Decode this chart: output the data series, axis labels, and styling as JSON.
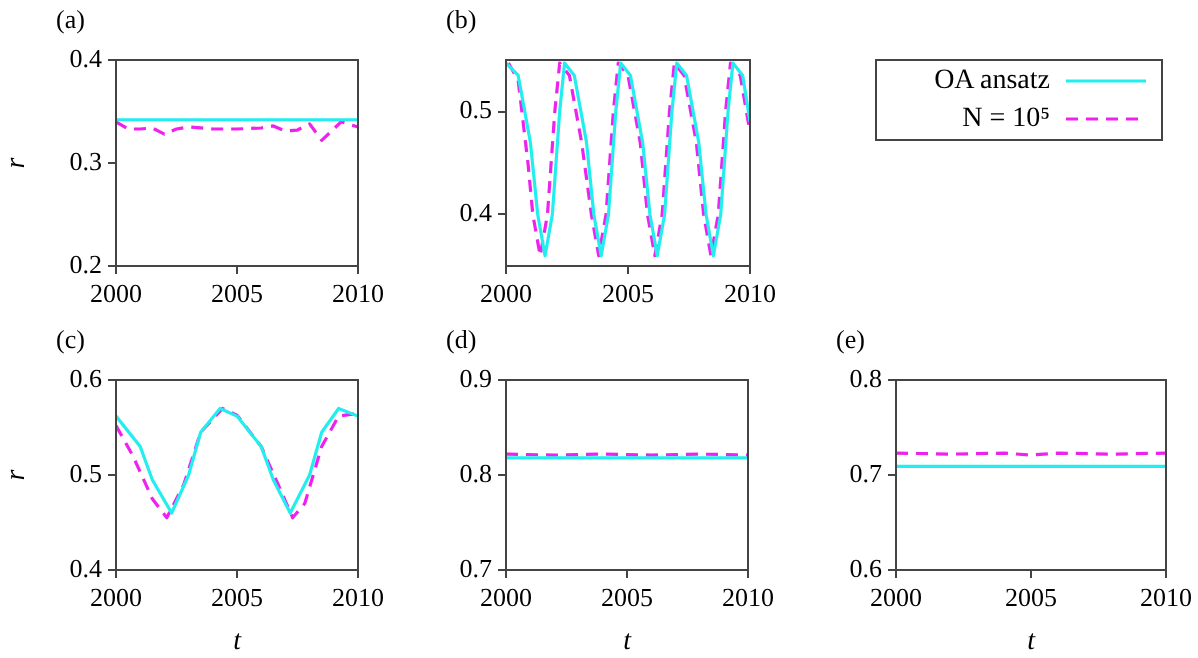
{
  "chart_data": [
    {
      "type": "line",
      "title": "(a)",
      "ylabel": "r",
      "xlim": [
        2000,
        2010
      ],
      "xticks": [
        2000,
        2005,
        2010
      ],
      "ylim": [
        0.2,
        0.4
      ],
      "yticks": [
        0.2,
        0.3,
        0.4
      ],
      "series": [
        {
          "color": "#22eeee",
          "line_style": "solid",
          "x": [
            2000,
            2010
          ],
          "values": [
            0.342,
            0.342
          ]
        },
        {
          "color": "#ee22ee",
          "line_style": "dashed",
          "x": [
            2000,
            2000.5,
            2001,
            2001.5,
            2002,
            2002.5,
            2003,
            2004,
            2005,
            2006,
            2006.5,
            2007,
            2007.5,
            2008,
            2008.5,
            2009,
            2009.3,
            2010
          ],
          "values": [
            0.34,
            0.333,
            0.333,
            0.334,
            0.328,
            0.333,
            0.335,
            0.333,
            0.333,
            0.334,
            0.336,
            0.331,
            0.332,
            0.338,
            0.322,
            0.333,
            0.34,
            0.335
          ]
        }
      ]
    },
    {
      "type": "line",
      "title": "(b)",
      "legend": "right",
      "xlim": [
        2000,
        2010
      ],
      "xticks": [
        2000,
        2005,
        2010
      ],
      "ylim": [
        0.35,
        0.55
      ],
      "yticks": [
        0.4,
        0.5
      ],
      "series": [
        {
          "name": "OA ansatz",
          "color": "#22eeee",
          "line_style": "solid",
          "x": [
            2000,
            2000.5,
            2001,
            2001.3,
            2001.6,
            2001.9,
            2002.2,
            2002.4,
            2002.8,
            2003.3,
            2003.6,
            2003.9,
            2004.2,
            2004.5,
            2004.7,
            2005.1,
            2005.6,
            2005.9,
            2006.2,
            2006.5,
            2006.8,
            2007,
            2007.4,
            2007.9,
            2008.2,
            2008.5,
            2008.8,
            2009.1,
            2009.3,
            2009.7,
            2010
          ],
          "values": [
            0.547,
            0.535,
            0.47,
            0.4,
            0.36,
            0.4,
            0.5,
            0.547,
            0.535,
            0.47,
            0.4,
            0.36,
            0.4,
            0.5,
            0.547,
            0.535,
            0.47,
            0.4,
            0.36,
            0.4,
            0.5,
            0.547,
            0.535,
            0.47,
            0.4,
            0.36,
            0.4,
            0.5,
            0.547,
            0.535,
            0.49
          ]
        },
        {
          "name": "N = 10⁵",
          "color": "#ee22ee",
          "line_style": "dashed",
          "x": [
            2000.1,
            2000.5,
            2000.9,
            2001.1,
            2001.4,
            2001.7,
            2002,
            2002.2,
            2002.6,
            2003.1,
            2003.5,
            2003.8,
            2004.1,
            2004.4,
            2004.6,
            2005,
            2005.5,
            2005.8,
            2006.1,
            2006.4,
            2006.7,
            2006.9,
            2007.3,
            2007.8,
            2008.1,
            2008.4,
            2008.7,
            2009,
            2009.2,
            2009.6,
            2010
          ],
          "values": [
            0.547,
            0.53,
            0.45,
            0.4,
            0.36,
            0.4,
            0.5,
            0.547,
            0.535,
            0.47,
            0.4,
            0.36,
            0.4,
            0.5,
            0.547,
            0.535,
            0.47,
            0.4,
            0.36,
            0.4,
            0.5,
            0.547,
            0.535,
            0.47,
            0.4,
            0.36,
            0.4,
            0.5,
            0.547,
            0.535,
            0.48
          ]
        }
      ]
    },
    {
      "type": "line",
      "title": "(c)",
      "ylabel": "r",
      "xlabel": "t",
      "xlim": [
        2000,
        2010
      ],
      "xticks": [
        2000,
        2005,
        2010
      ],
      "ylim": [
        0.4,
        0.6
      ],
      "yticks": [
        0.4,
        0.5,
        0.6
      ],
      "series": [
        {
          "color": "#22eeee",
          "line_style": "solid",
          "x": [
            2000,
            2001,
            2001.5,
            2002.3,
            2003,
            2003.5,
            2004.3,
            2005,
            2006,
            2006.5,
            2007.2,
            2008,
            2008.5,
            2009.2,
            2010
          ],
          "values": [
            0.562,
            0.53,
            0.495,
            0.46,
            0.5,
            0.545,
            0.57,
            0.562,
            0.53,
            0.495,
            0.46,
            0.5,
            0.545,
            0.57,
            0.562
          ]
        },
        {
          "color": "#ee22ee",
          "line_style": "dashed",
          "x": [
            2000,
            2000.7,
            2001.5,
            2002.1,
            2002.8,
            2003.5,
            2004.4,
            2005,
            2006,
            2006.7,
            2007.3,
            2007.8,
            2008.5,
            2009.2,
            2010
          ],
          "values": [
            0.552,
            0.52,
            0.475,
            0.455,
            0.49,
            0.545,
            0.57,
            0.563,
            0.53,
            0.49,
            0.455,
            0.47,
            0.53,
            0.562,
            0.565
          ]
        }
      ]
    },
    {
      "type": "line",
      "title": "(d)",
      "xlabel": "t",
      "xlim": [
        2000,
        2010
      ],
      "xticks": [
        2000,
        2005,
        2010
      ],
      "ylim": [
        0.7,
        0.9
      ],
      "yticks": [
        0.7,
        0.8,
        0.9
      ],
      "series": [
        {
          "color": "#22eeee",
          "line_style": "solid",
          "x": [
            2000,
            2010
          ],
          "values": [
            0.818,
            0.818
          ]
        },
        {
          "color": "#ee22ee",
          "line_style": "dashed",
          "x": [
            2000,
            2002,
            2004,
            2006,
            2008,
            2010
          ],
          "values": [
            0.822,
            0.821,
            0.822,
            0.821,
            0.822,
            0.821
          ]
        }
      ]
    },
    {
      "type": "line",
      "title": "(e)",
      "xlabel": "t",
      "xlim": [
        2000,
        2010
      ],
      "xticks": [
        2000,
        2005,
        2010
      ],
      "ylim": [
        0.6,
        0.8
      ],
      "yticks": [
        0.6,
        0.7,
        0.8
      ],
      "series": [
        {
          "color": "#22eeee",
          "line_style": "solid",
          "x": [
            2000,
            2010
          ],
          "values": [
            0.709,
            0.709
          ]
        },
        {
          "color": "#ee22ee",
          "line_style": "dashed",
          "x": [
            2000,
            2002,
            2004,
            2005,
            2006,
            2008,
            2010
          ],
          "values": [
            0.723,
            0.722,
            0.723,
            0.721,
            0.723,
            0.722,
            0.723
          ]
        }
      ]
    }
  ]
}
